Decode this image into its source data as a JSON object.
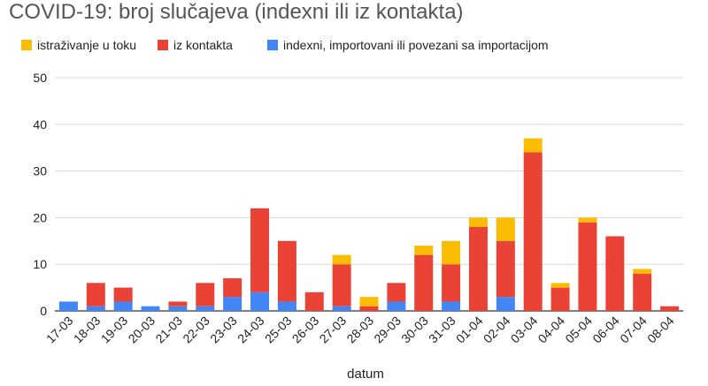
{
  "chart_data": {
    "type": "bar",
    "stacked": true,
    "title": "COVID-19: broj slučajeva (indexni  ili iz kontakta)",
    "xlabel": "datum",
    "ylabel": "",
    "ylim": [
      0,
      50
    ],
    "yticks": [
      0,
      10,
      20,
      30,
      40,
      50
    ],
    "grid": true,
    "legend_position": "top",
    "categories": [
      "17-03",
      "18-03",
      "19-03",
      "20-03",
      "21-03",
      "22-03",
      "23-03",
      "24-03",
      "25-03",
      "26-03",
      "27-03",
      "28-03",
      "29-03",
      "30-03",
      "31-03",
      "01-04",
      "02-04",
      "03-04",
      "04-04",
      "05-04",
      "06-04",
      "07-04",
      "08-04"
    ],
    "series": [
      {
        "name": "indexni, importovani ili povezani sa importacijom",
        "color": "#4285f4",
        "values": [
          2,
          1,
          2,
          1,
          1,
          1,
          3,
          4,
          2,
          0,
          1,
          0,
          2,
          0,
          2,
          0,
          3,
          0,
          0,
          0,
          0,
          0,
          0
        ]
      },
      {
        "name": "iz kontakta",
        "color": "#ea4335",
        "values": [
          0,
          5,
          3,
          0,
          1,
          5,
          4,
          18,
          13,
          4,
          9,
          1,
          4,
          12,
          8,
          18,
          12,
          34,
          5,
          19,
          16,
          8,
          1
        ]
      },
      {
        "name": "istraživanje u toku",
        "color": "#fbbc04",
        "values": [
          0,
          0,
          0,
          0,
          0,
          0,
          0,
          0,
          0,
          0,
          2,
          2,
          0,
          2,
          5,
          2,
          5,
          3,
          1,
          1,
          0,
          1,
          0
        ]
      }
    ],
    "legend_order": [
      "istraživanje u toku",
      "iz kontakta",
      "indexni, importovani ili povezani sa importacijom"
    ]
  }
}
